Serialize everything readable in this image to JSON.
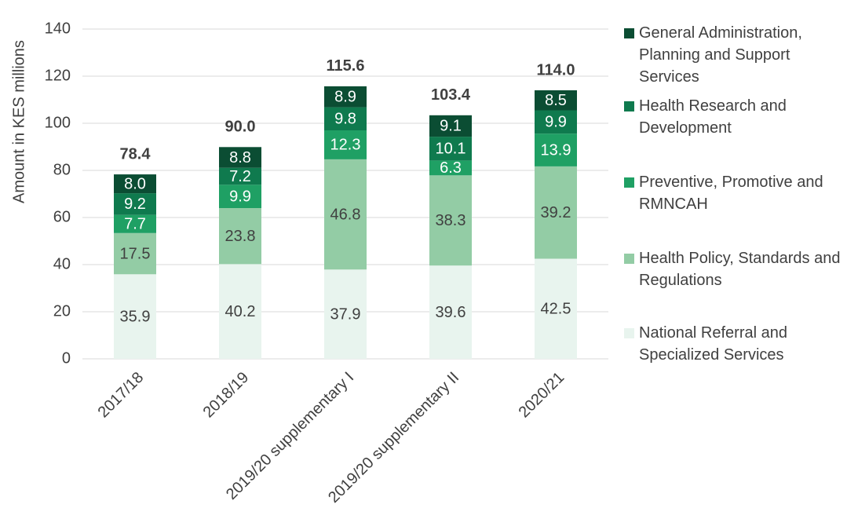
{
  "chart_data": {
    "type": "stacked_bar",
    "y_label": "Amount in KES millions",
    "categories": [
      "2017/18",
      "2018/19",
      "2019/20 supplementary I",
      "2019/20 supplementary II",
      "2020/21"
    ],
    "series": [
      {
        "name": "National Referral and Specialized Services",
        "color": "#e8f4ee",
        "label_color": "#404040",
        "values": [
          35.9,
          40.2,
          37.9,
          39.6,
          42.5
        ]
      },
      {
        "name": "Health Policy, Standards and Regulations",
        "color": "#93cca5",
        "label_color": "#404040",
        "values": [
          17.5,
          23.8,
          46.8,
          38.3,
          39.2
        ]
      },
      {
        "name": "Preventive, Promotive and RMNCAH",
        "color": "#1fa064",
        "label_color": "#ffffff",
        "values": [
          7.7,
          9.9,
          12.3,
          6.3,
          13.9
        ]
      },
      {
        "name": "Health Research and Development",
        "color": "#0f7a4e",
        "label_color": "#ffffff",
        "values": [
          9.2,
          7.2,
          9.8,
          10.1,
          9.9
        ]
      },
      {
        "name": "General Administration, Planning and Support Services",
        "color": "#0b4d33",
        "label_color": "#ffffff",
        "values": [
          8,
          8.8,
          8.9,
          9.1,
          8.5
        ],
        "value_labels": [
          "8.0",
          "8.8",
          "8.9",
          "9.1",
          "8.5"
        ]
      }
    ],
    "totals": {
      "values": [
        78.4,
        90,
        115.6,
        103.4,
        114
      ],
      "value_labels": [
        "78.4",
        "90.0",
        "115.6",
        "103.4",
        "114.0"
      ]
    },
    "ylim": [
      0,
      140
    ],
    "yticks": [
      0,
      20,
      40,
      60,
      80,
      100,
      120,
      140
    ],
    "grid": true,
    "legend": "right"
  }
}
